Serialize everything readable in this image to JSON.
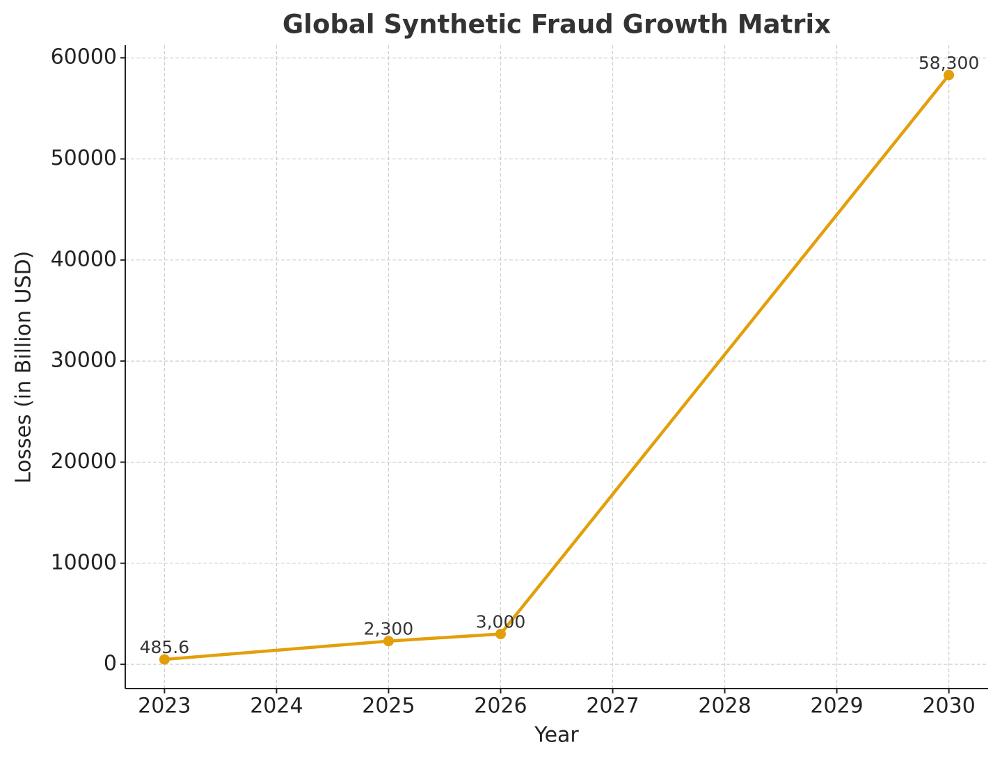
{
  "chart_data": {
    "type": "line",
    "title": "Global Synthetic Fraud Growth Matrix",
    "x_label": "Year",
    "y_label": "Losses (in Billion USD)",
    "x": [
      2023,
      2025,
      2026,
      2030
    ],
    "series": [
      {
        "name": "Losses",
        "color": "#e39f0a",
        "values": [
          485.6,
          2300,
          3000,
          58300
        ],
        "value_labels": [
          "485.6",
          "2,300",
          "3,000",
          "58,300"
        ]
      }
    ],
    "xlim": [
      2022.65,
      2030.35
    ],
    "ylim": [
      -2400,
      61250
    ],
    "xticks": [
      2023,
      2024,
      2025,
      2026,
      2027,
      2028,
      2029,
      2030
    ],
    "yticks": [
      0,
      10000,
      20000,
      30000,
      40000,
      50000,
      60000
    ],
    "grid": true
  }
}
